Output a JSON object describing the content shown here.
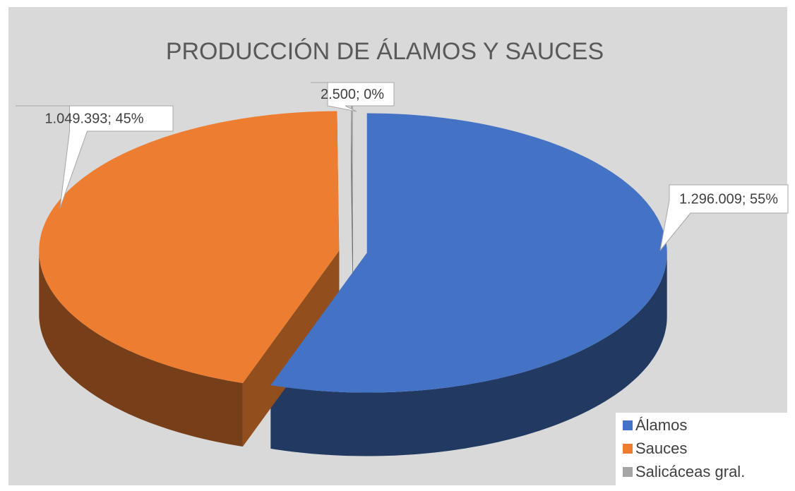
{
  "chart_data": {
    "type": "pie",
    "title": "PRODUCCIÓN DE ÁLAMOS Y SAUCES",
    "categories": [
      "Álamos",
      "Sauces",
      "Salicáceas gral."
    ],
    "values": [
      1296009,
      1049393,
      2500
    ],
    "value_labels": [
      "1.296.009; 55%",
      "1.049.393; 45%",
      "2.500; 0%"
    ],
    "colors": [
      "#4472c4",
      "#ed7d31",
      "#a5a5a5"
    ],
    "legend": "bottom-right",
    "three_d": true,
    "exploded": true
  }
}
